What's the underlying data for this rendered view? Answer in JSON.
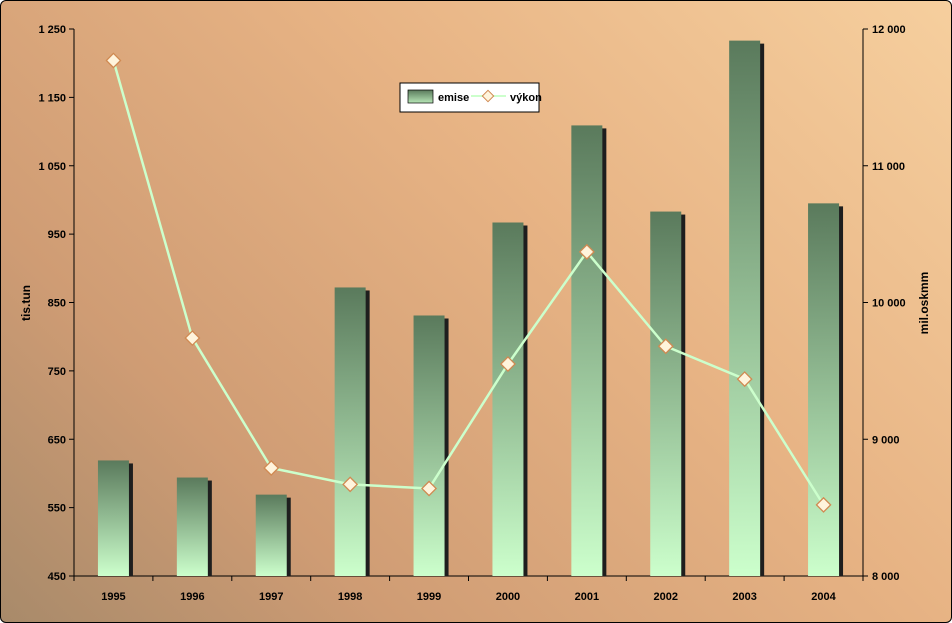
{
  "chart_data": {
    "type": "bar",
    "title": "",
    "categories": [
      "1995",
      "1996",
      "1997",
      "1998",
      "1999",
      "2000",
      "2001",
      "2002",
      "2003",
      "2004"
    ],
    "series": [
      {
        "name": "emise",
        "type": "bar",
        "axis": "left",
        "values": [
          619,
          594,
          569,
          872,
          831,
          967,
          1109,
          983,
          1233,
          995
        ]
      },
      {
        "name": "výkon",
        "type": "line",
        "axis": "right",
        "values": [
          11770,
          9740,
          8790,
          8670,
          8640,
          9550,
          10370,
          9680,
          9440,
          8520
        ]
      }
    ],
    "ylabel": "tis.tun",
    "y2label": "mil.oskmm",
    "ylim": [
      450,
      1250
    ],
    "y2lim": [
      8000,
      12000
    ],
    "y_ticks": [
      "450",
      "550",
      "650",
      "750",
      "850",
      "950",
      "1 050",
      "1 150",
      "1 250"
    ],
    "y2_ticks": [
      "8 000",
      "9 000",
      "10 000",
      "11 000",
      "12 000"
    ],
    "legend": {
      "position": "top-center",
      "entries": [
        "emise",
        "výkon"
      ]
    },
    "grid": false,
    "colors": {
      "bar_top": "#5a7a5c",
      "bar_bottom": "#ccffcc",
      "line": "#ccffcc",
      "marker_fill": "#fff4dc",
      "marker_stroke": "#d08a52"
    }
  }
}
